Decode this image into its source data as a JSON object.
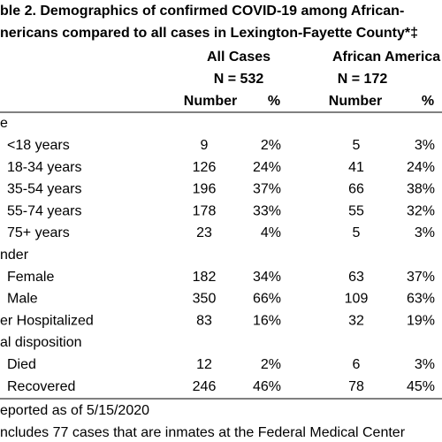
{
  "title": [
    "ble 2. Demographics of confirmed COVID-19 among African-",
    "nericans compared to all cases in Lexington-Fayette County*‡"
  ],
  "groups": [
    {
      "name": "All Cases",
      "n": "N = 532"
    },
    {
      "name": "African America",
      "n": "N = 172"
    }
  ],
  "columns": [
    "Number",
    "%",
    "Number",
    "%"
  ],
  "sections": [
    {
      "label": "e",
      "rows": [
        {
          "label": "<18 years",
          "values": [
            "9",
            "2%",
            "5",
            "3%"
          ]
        },
        {
          "label": "18-34 years",
          "values": [
            "126",
            "24%",
            "41",
            "24%"
          ]
        },
        {
          "label": "35-54 years",
          "values": [
            "196",
            "37%",
            "66",
            "38%"
          ]
        },
        {
          "label": "55-74 years",
          "values": [
            "178",
            "33%",
            "55",
            "32%"
          ]
        },
        {
          "label": "75+ years",
          "values": [
            "23",
            "4%",
            "5",
            "3%"
          ]
        }
      ]
    },
    {
      "label": "nder",
      "rows": [
        {
          "label": "Female",
          "values": [
            "182",
            "34%",
            "63",
            "37%"
          ]
        },
        {
          "label": "Male",
          "values": [
            "350",
            "66%",
            "109",
            "63%"
          ]
        }
      ]
    },
    {
      "label": "er Hospitalized",
      "values": [
        "83",
        "16%",
        "32",
        "19%"
      ]
    },
    {
      "label": "al disposition",
      "rows": [
        {
          "label": "Died",
          "values": [
            "12",
            "2%",
            "6",
            "3%"
          ]
        },
        {
          "label": "Recovered",
          "values": [
            "246",
            "46%",
            "78",
            "45%"
          ]
        }
      ]
    }
  ],
  "footnotes": [
    "eported as of 5/15/2020",
    "ncludes 77 cases that are inmates at the Federal Medical Center"
  ]
}
